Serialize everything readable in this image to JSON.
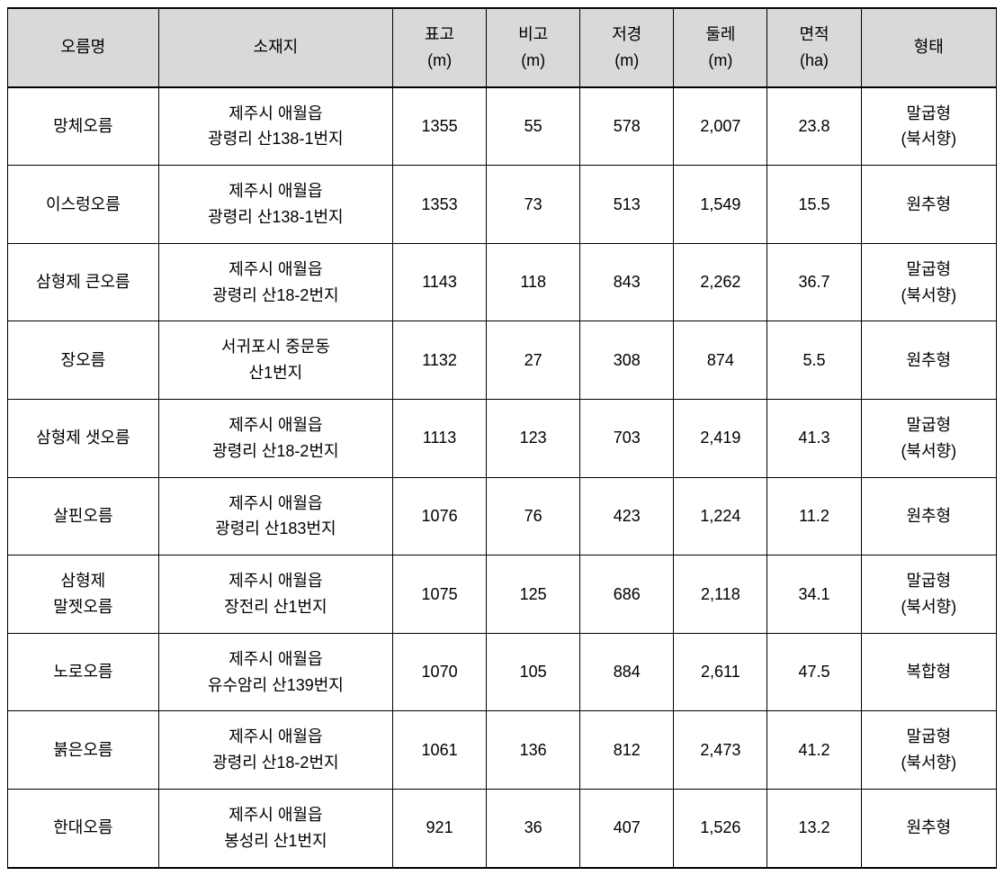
{
  "table": {
    "header_bg": "#d9d9d9",
    "border_color": "#000000",
    "columns": [
      {
        "key": "name",
        "label": "오름명"
      },
      {
        "key": "location",
        "label": "소재지"
      },
      {
        "key": "elevation",
        "label": "표고\n(m)"
      },
      {
        "key": "relief",
        "label": "비고\n(m)"
      },
      {
        "key": "base_diameter",
        "label": "저경\n(m)"
      },
      {
        "key": "circumference",
        "label": "둘레\n(m)"
      },
      {
        "key": "area",
        "label": "면적\n(ha)"
      },
      {
        "key": "shape",
        "label": "형태"
      }
    ],
    "rows": [
      {
        "name": "망체오름",
        "location": "제주시 애월읍\n광령리 산138-1번지",
        "elevation": "1355",
        "relief": "55",
        "base_diameter": "578",
        "circumference": "2,007",
        "area": "23.8",
        "shape": "말굽형\n(북서향)"
      },
      {
        "name": "이스렁오름",
        "location": "제주시 애월읍\n광령리 산138-1번지",
        "elevation": "1353",
        "relief": "73",
        "base_diameter": "513",
        "circumference": "1,549",
        "area": "15.5",
        "shape": "원추형"
      },
      {
        "name": "삼형제 큰오름",
        "location": "제주시 애월읍\n광령리 산18-2번지",
        "elevation": "1143",
        "relief": "118",
        "base_diameter": "843",
        "circumference": "2,262",
        "area": "36.7",
        "shape": "말굽형\n(북서향)"
      },
      {
        "name": "장오름",
        "location": "서귀포시 중문동\n산1번지",
        "elevation": "1132",
        "relief": "27",
        "base_diameter": "308",
        "circumference": "874",
        "area": "5.5",
        "shape": "원추형"
      },
      {
        "name": "삼형제 샛오름",
        "location": "제주시 애월읍\n광령리 산18-2번지",
        "elevation": "1113",
        "relief": "123",
        "base_diameter": "703",
        "circumference": "2,419",
        "area": "41.3",
        "shape": "말굽형\n(북서향)"
      },
      {
        "name": "살핀오름",
        "location": "제주시 애월읍\n광령리 산183번지",
        "elevation": "1076",
        "relief": "76",
        "base_diameter": "423",
        "circumference": "1,224",
        "area": "11.2",
        "shape": "원추형"
      },
      {
        "name": "삼형제\n말젯오름",
        "location": "제주시 애월읍\n장전리 산1번지",
        "elevation": "1075",
        "relief": "125",
        "base_diameter": "686",
        "circumference": "2,118",
        "area": "34.1",
        "shape": "말굽형\n(북서향)"
      },
      {
        "name": "노로오름",
        "location": "제주시 애월읍\n유수암리 산139번지",
        "elevation": "1070",
        "relief": "105",
        "base_diameter": "884",
        "circumference": "2,611",
        "area": "47.5",
        "shape": "복합형"
      },
      {
        "name": "붉은오름",
        "location": "제주시 애월읍\n광령리 산18-2번지",
        "elevation": "1061",
        "relief": "136",
        "base_diameter": "812",
        "circumference": "2,473",
        "area": "41.2",
        "shape": "말굽형\n(북서향)"
      },
      {
        "name": "한대오름",
        "location": "제주시 애월읍\n봉성리 산1번지",
        "elevation": "921",
        "relief": "36",
        "base_diameter": "407",
        "circumference": "1,526",
        "area": "13.2",
        "shape": "원추형"
      }
    ]
  }
}
